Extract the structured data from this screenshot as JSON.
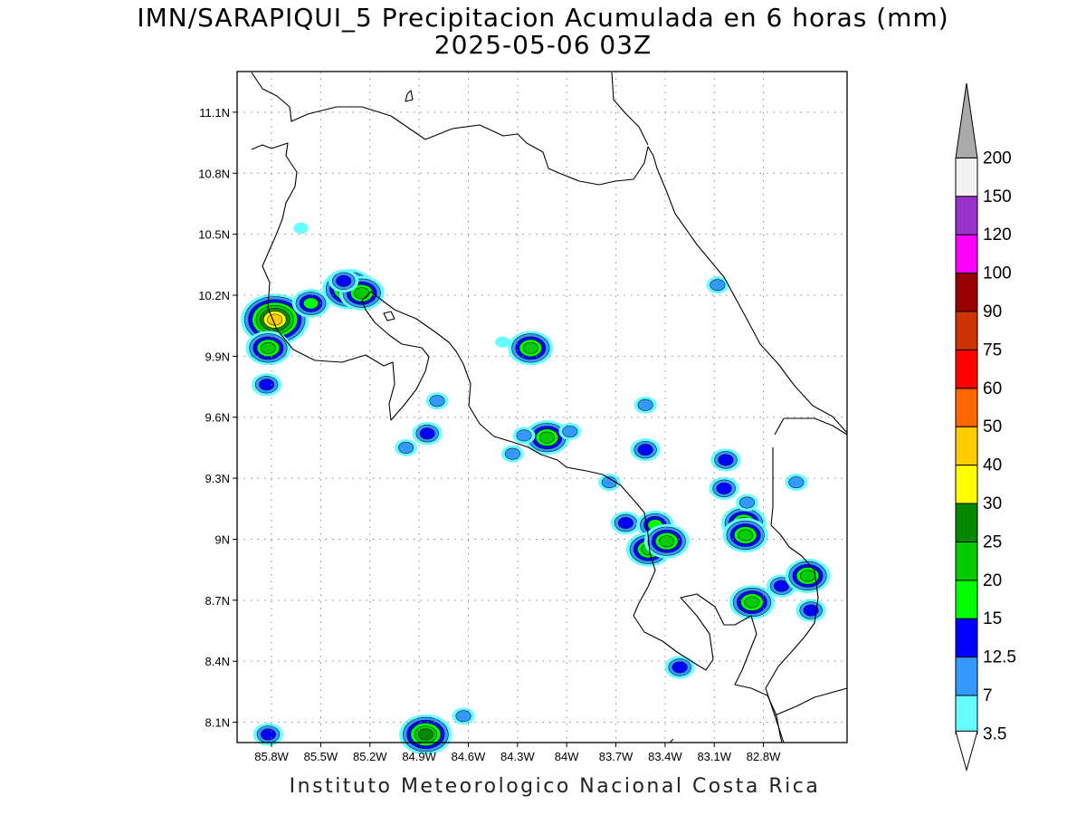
{
  "title_line1": "IMN/SARAPIQUI_5 Precipitacion Acumulada en 6 horas (mm)",
  "title_line2": "2025-05-06 03Z",
  "footer": "Instituto Meteorologico Nacional Costa Rica",
  "lat_labels": [
    "11.1N",
    "10.8N",
    "10.5N",
    "10.2N",
    "9.9N",
    "9.6N",
    "9.3N",
    "9N",
    "8.7N",
    "8.4N",
    "8.1N"
  ],
  "lon_labels": [
    "85.8W",
    "85.5W",
    "85.2W",
    "84.9W",
    "84.6W",
    "84.3W",
    "84W",
    "83.7W",
    "83.4W",
    "83.1W",
    "82.8W"
  ],
  "colorbar": {
    "levels": [
      "3.5",
      "7",
      "12.5",
      "15",
      "20",
      "25",
      "30",
      "40",
      "50",
      "60",
      "75",
      "90",
      "100",
      "120",
      "150",
      "200"
    ],
    "colors": [
      "#66ffff",
      "#3399ff",
      "#0000ff",
      "#00ff00",
      "#00cc00",
      "#008800",
      "#ffff00",
      "#ffcc00",
      "#ff6600",
      "#ff0000",
      "#cc3300",
      "#990000",
      "#ff00ff",
      "#9933cc",
      "#f2f2f2",
      "#aaaaaa"
    ]
  },
  "precip_cells": [
    {
      "lon": -85.78,
      "lat": 10.08,
      "mm": 42
    },
    {
      "lon": -85.82,
      "lat": 9.94,
      "mm": 20
    },
    {
      "lon": -85.83,
      "lat": 9.76,
      "mm": 12.5
    },
    {
      "lon": -85.56,
      "lat": 10.16,
      "mm": 15
    },
    {
      "lon": -85.33,
      "lat": 10.23,
      "mm": 27
    },
    {
      "lon": -85.25,
      "lat": 10.21,
      "mm": 22
    },
    {
      "lon": -85.36,
      "lat": 10.27,
      "mm": 12.5
    },
    {
      "lon": -84.79,
      "lat": 9.68,
      "mm": 7
    },
    {
      "lon": -84.85,
      "lat": 9.52,
      "mm": 12.5
    },
    {
      "lon": -84.98,
      "lat": 9.45,
      "mm": 7
    },
    {
      "lon": -84.22,
      "lat": 9.94,
      "mm": 22
    },
    {
      "lon": -84.39,
      "lat": 9.97,
      "mm": 3.5
    },
    {
      "lon": -84.12,
      "lat": 9.5,
      "mm": 20
    },
    {
      "lon": -84.26,
      "lat": 9.51,
      "mm": 7
    },
    {
      "lon": -84.33,
      "lat": 9.42,
      "mm": 7
    },
    {
      "lon": -83.98,
      "lat": 9.53,
      "mm": 7
    },
    {
      "lon": -83.74,
      "lat": 9.28,
      "mm": 7
    },
    {
      "lon": -83.64,
      "lat": 9.08,
      "mm": 12.5
    },
    {
      "lon": -83.46,
      "lat": 9.07,
      "mm": 15
    },
    {
      "lon": -83.5,
      "lat": 8.95,
      "mm": 20
    },
    {
      "lon": -83.39,
      "lat": 8.99,
      "mm": 20
    },
    {
      "lon": -83.52,
      "lat": 9.44,
      "mm": 12.5
    },
    {
      "lon": -83.31,
      "lat": 8.37,
      "mm": 12.5
    },
    {
      "lon": -83.03,
      "lat": 9.39,
      "mm": 12.5
    },
    {
      "lon": -83.04,
      "lat": 9.25,
      "mm": 12.5
    },
    {
      "lon": -82.92,
      "lat": 9.08,
      "mm": 20
    },
    {
      "lon": -82.91,
      "lat": 9.02,
      "mm": 22
    },
    {
      "lon": -82.9,
      "lat": 9.18,
      "mm": 7
    },
    {
      "lon": -82.87,
      "lat": 8.69,
      "mm": 22
    },
    {
      "lon": -82.69,
      "lat": 8.77,
      "mm": 12.5
    },
    {
      "lon": -82.53,
      "lat": 8.82,
      "mm": 20
    },
    {
      "lon": -82.51,
      "lat": 8.65,
      "mm": 12.5
    },
    {
      "lon": -82.6,
      "lat": 9.28,
      "mm": 7
    },
    {
      "lon": -85.82,
      "lat": 8.04,
      "mm": 12.5
    },
    {
      "lon": -84.86,
      "lat": 8.04,
      "mm": 25
    },
    {
      "lon": -84.63,
      "lat": 8.13,
      "mm": 7
    },
    {
      "lon": -83.08,
      "lat": 10.25,
      "mm": 7
    },
    {
      "lon": -85.62,
      "lat": 10.53,
      "mm": 3.5
    },
    {
      "lon": -83.52,
      "lat": 9.66,
      "mm": 7
    }
  ]
}
